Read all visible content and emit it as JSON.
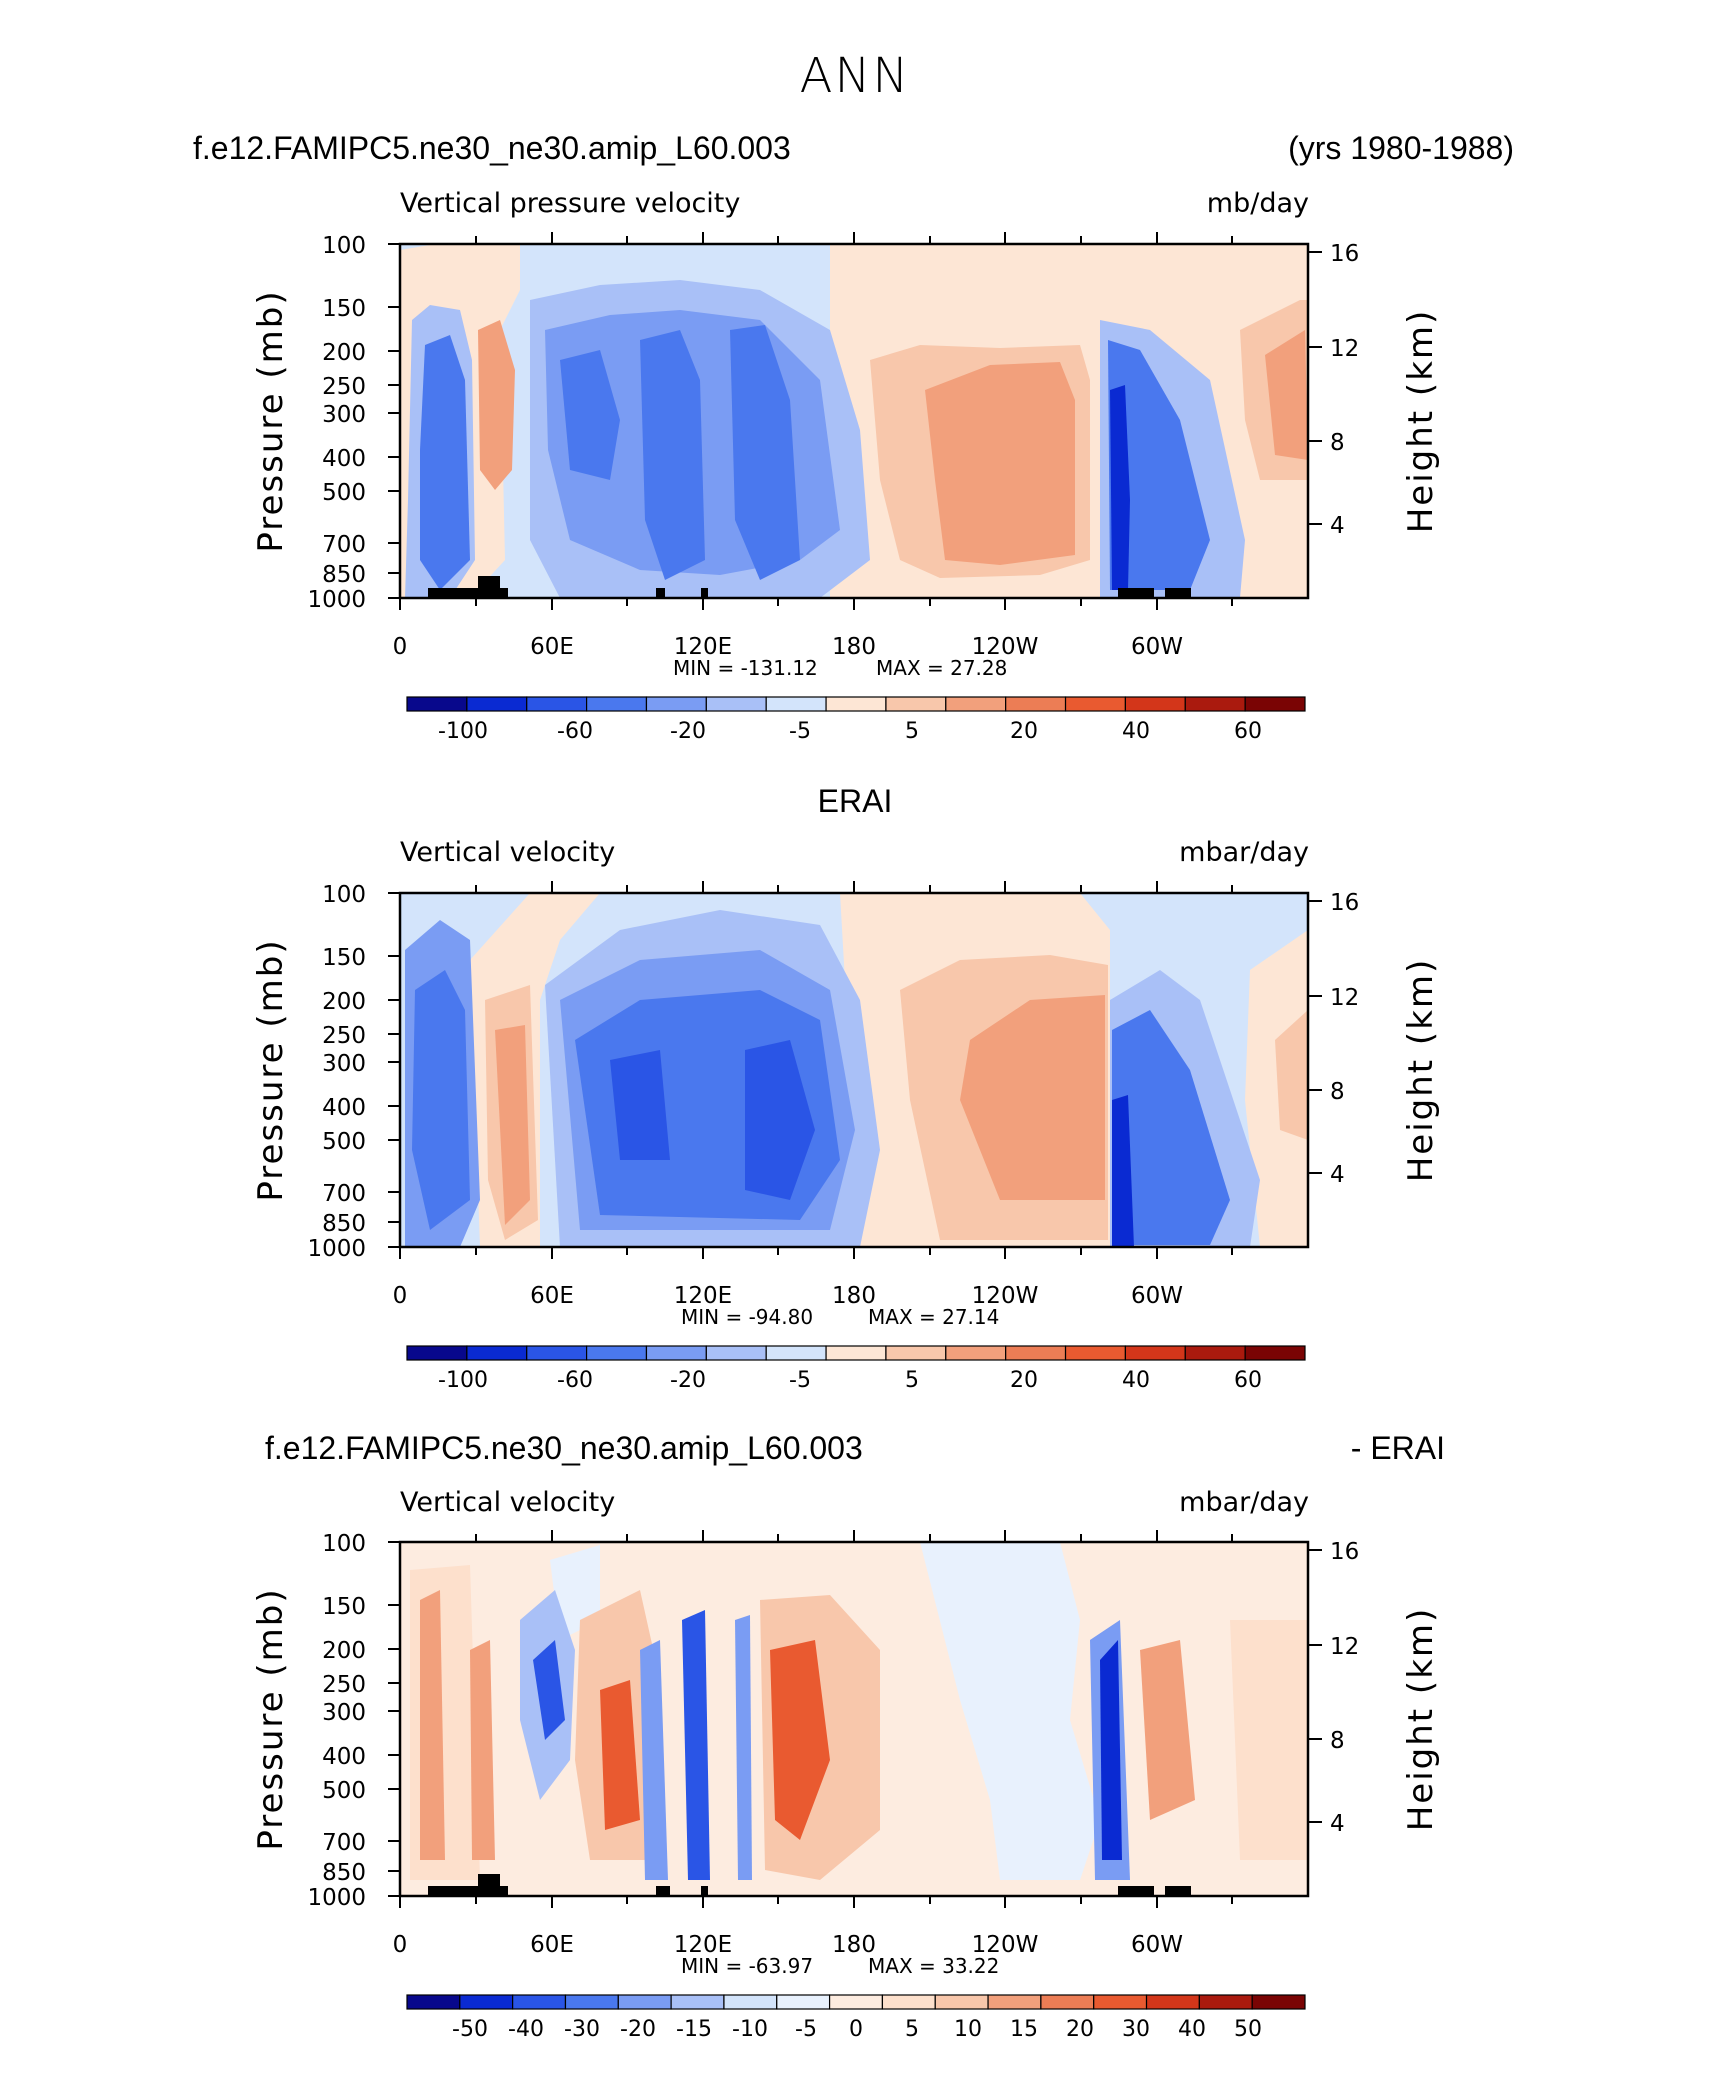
{
  "page": {
    "main_title": "ANN"
  },
  "colors": {
    "levels_abs": [
      "#08088c",
      "#0a2ad2",
      "#2a55e6",
      "#4a78ee",
      "#7a9cf3",
      "#a9c0f7",
      "#d3e4fb",
      "#fde6d5",
      "#f8c7ab",
      "#f2a07c",
      "#ec7d55",
      "#e95a30",
      "#d3361a",
      "#aa1a0e",
      "#7a0404"
    ],
    "levels_diff": [
      "#08088c",
      "#0a2ad2",
      "#2a55e6",
      "#4a78ee",
      "#7a9cf3",
      "#a9c0f7",
      "#d3e4fb",
      "#e8f1fd",
      "#fdece0",
      "#fde0cc",
      "#f8c7ab",
      "#f2a07c",
      "#ec7d55",
      "#e95a30",
      "#d3361a",
      "#aa1a0e",
      "#7a0404"
    ]
  },
  "panels": [
    {
      "left_title": "f.e12.FAMIPC5.ne30_ne30.amip_L60.003",
      "center_title": "",
      "right_title": "(yrs 1980-1988)",
      "variable": "Vertical pressure velocity",
      "units": "mb/day",
      "min_label": "MIN = -131.12",
      "max_label": "MAX =  27.28",
      "colorbar_labels": [
        "-100",
        "-60",
        "-20",
        "-5",
        "5",
        "20",
        "40",
        "60"
      ]
    },
    {
      "left_title": "",
      "center_title": "ERAI",
      "right_title": "",
      "variable": "Vertical velocity",
      "units": "mbar/day",
      "min_label": "MIN = -94.80",
      "max_label": "MAX =  27.14",
      "colorbar_labels": [
        "-100",
        "-60",
        "-20",
        "-5",
        "5",
        "20",
        "40",
        "60"
      ]
    },
    {
      "left_title": "f.e12.FAMIPC5.ne30_ne30.amip_L60.003",
      "center_title": "",
      "right_title": "- ERAI",
      "variable": "Vertical velocity",
      "units": "mbar/day",
      "min_label": "MIN = -63.97",
      "max_label": "MAX =  33.22",
      "colorbar_labels": [
        "-50",
        "-40",
        "-30",
        "-20",
        "-15",
        "-10",
        "-5",
        "0",
        "5",
        "10",
        "15",
        "20",
        "30",
        "40",
        "50"
      ]
    }
  ],
  "chart_data": [
    {
      "type": "heatmap",
      "title": "Vertical pressure velocity",
      "xlabel": "",
      "ylabel": "Pressure (mb)",
      "ylabel_right": "Height (km)",
      "xticks": [
        "0",
        "60E",
        "120E",
        "180",
        "120W",
        "60W"
      ],
      "yticks": [
        "100",
        "150",
        "200",
        "250",
        "300",
        "400",
        "500",
        "700",
        "850",
        "1000"
      ],
      "yticks_right": [
        "4",
        "8",
        "12",
        "16"
      ],
      "xlim": [
        0,
        360
      ],
      "ylim": [
        1000,
        100
      ],
      "log_scale_y": true,
      "min": -131.12,
      "max": 27.28,
      "contour_levels": [
        -120,
        -100,
        -80,
        -60,
        -40,
        -20,
        -10,
        -5,
        0,
        5,
        10,
        20,
        30,
        40,
        50,
        60,
        70
      ],
      "features": [
        {
          "lon": 25,
          "lev": 400,
          "value": -60
        },
        {
          "lon": 40,
          "lev": 400,
          "value": 10
        },
        {
          "lon": 70,
          "lev": 350,
          "value": -40
        },
        {
          "lon": 100,
          "lev": 350,
          "value": -60
        },
        {
          "lon": 140,
          "lev": 400,
          "value": -40
        },
        {
          "lon": 250,
          "lev": 400,
          "value": 10
        },
        {
          "lon": 285,
          "lev": 500,
          "value": -100
        },
        {
          "lon": 340,
          "lev": 300,
          "value": 10
        }
      ]
    },
    {
      "type": "heatmap",
      "title": "Vertical velocity",
      "xlabel": "",
      "ylabel": "Pressure (mb)",
      "ylabel_right": "Height (km)",
      "xticks": [
        "0",
        "60E",
        "120E",
        "180",
        "120W",
        "60W"
      ],
      "yticks": [
        "100",
        "150",
        "200",
        "250",
        "300",
        "400",
        "500",
        "700",
        "850",
        "1000"
      ],
      "yticks_right": [
        "4",
        "8",
        "12",
        "16"
      ],
      "xlim": [
        0,
        360
      ],
      "ylim": [
        1000,
        100
      ],
      "log_scale_y": true,
      "min": -94.8,
      "max": 27.14,
      "contour_levels": [
        -120,
        -100,
        -80,
        -60,
        -40,
        -20,
        -10,
        -5,
        0,
        5,
        10,
        20,
        30,
        40,
        50,
        60,
        70
      ],
      "features": [
        {
          "lon": 20,
          "lev": 400,
          "value": -60
        },
        {
          "lon": 45,
          "lev": 400,
          "value": 10
        },
        {
          "lon": 100,
          "lev": 400,
          "value": -60
        },
        {
          "lon": 150,
          "lev": 450,
          "value": -60
        },
        {
          "lon": 240,
          "lev": 450,
          "value": 10
        },
        {
          "lon": 290,
          "lev": 500,
          "value": -60
        },
        {
          "lon": 350,
          "lev": 400,
          "value": 5
        }
      ]
    },
    {
      "type": "heatmap",
      "title": "Vertical velocity",
      "xlabel": "",
      "ylabel": "Pressure (mb)",
      "ylabel_right": "Height (km)",
      "xticks": [
        "0",
        "60E",
        "120E",
        "180",
        "120W",
        "60W"
      ],
      "yticks": [
        "100",
        "150",
        "200",
        "250",
        "300",
        "400",
        "500",
        "700",
        "850",
        "1000"
      ],
      "yticks_right": [
        "4",
        "8",
        "12",
        "16"
      ],
      "xlim": [
        0,
        360
      ],
      "ylim": [
        1000,
        100
      ],
      "log_scale_y": true,
      "min": -63.97,
      "max": 33.22,
      "contour_levels": [
        -50,
        -40,
        -30,
        -20,
        -15,
        -10,
        -5,
        0,
        5,
        10,
        15,
        20,
        30,
        40,
        50
      ],
      "features": [
        {
          "lon": 12,
          "lev": 400,
          "value": 20
        },
        {
          "lon": 60,
          "lev": 300,
          "value": -30
        },
        {
          "lon": 85,
          "lev": 400,
          "value": 20
        },
        {
          "lon": 115,
          "lev": 400,
          "value": -30
        },
        {
          "lon": 155,
          "lev": 400,
          "value": 30
        },
        {
          "lon": 280,
          "lev": 450,
          "value": -50
        },
        {
          "lon": 300,
          "lev": 400,
          "value": 20
        }
      ]
    }
  ]
}
